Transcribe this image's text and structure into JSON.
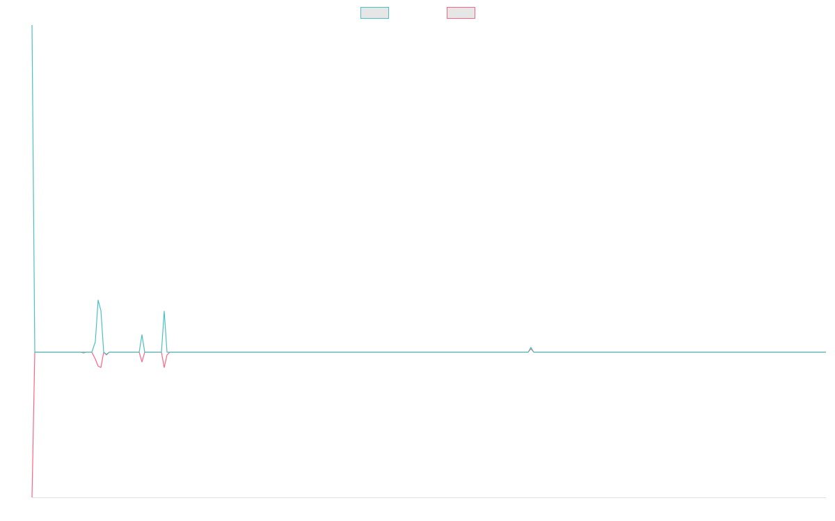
{
  "chart_data": {
    "type": "line",
    "x": [
      0,
      4,
      70,
      74,
      78,
      86,
      91,
      95,
      99,
      103,
      107,
      111,
      154,
      158,
      162,
      186,
      190,
      194,
      198,
      713,
      717,
      721,
      1141
    ],
    "series": [
      {
        "color": "#4bc0c0",
        "values": [
          471,
          0,
          0,
          -1,
          0,
          0,
          15,
          75,
          60,
          0,
          -3,
          0,
          0,
          25,
          0,
          0,
          59,
          0,
          0,
          0,
          7,
          0,
          0
        ]
      },
      {
        "color": "#ff6384",
        "values": [
          -209,
          0,
          0,
          0,
          0,
          0,
          -10,
          -20,
          -22,
          0,
          -4,
          0,
          0,
          -14,
          0,
          0,
          -22,
          -4,
          0,
          0,
          5,
          0,
          0
        ]
      }
    ],
    "xlim": [
      0,
      1141
    ],
    "ylim": [
      -209,
      471
    ]
  }
}
